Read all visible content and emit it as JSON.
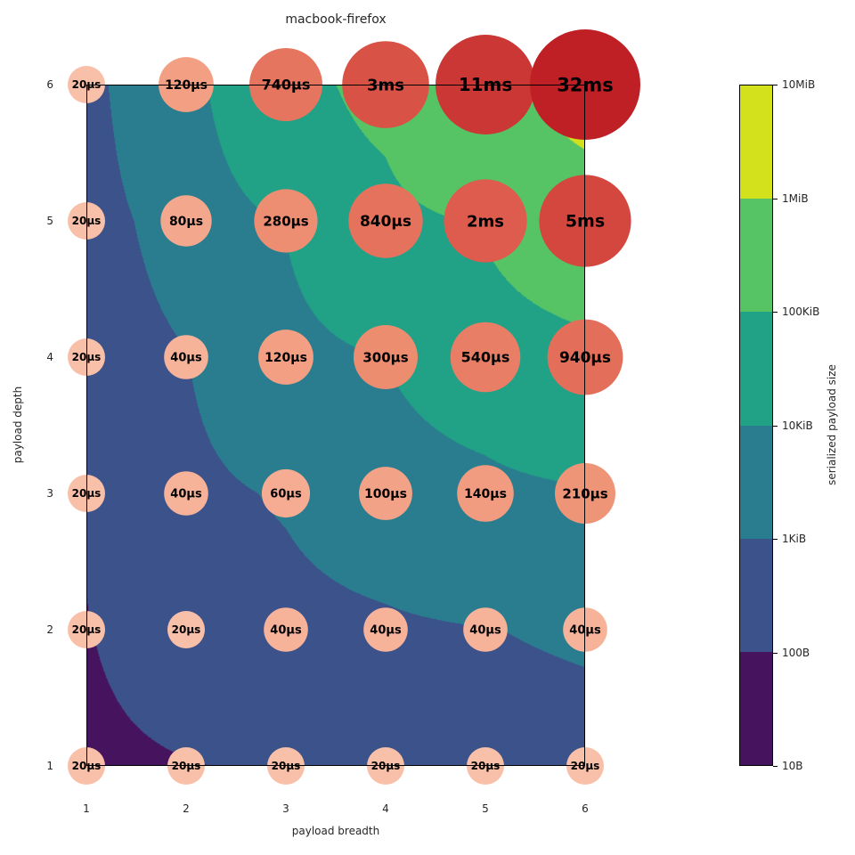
{
  "title": "macbook-firefox",
  "axes": {
    "xlabel": "payload breadth",
    "ylabel": "payload depth",
    "x_ticks": [
      "1",
      "2",
      "3",
      "4",
      "5",
      "6"
    ],
    "y_ticks": [
      "6",
      "5",
      "4",
      "3",
      "2",
      "1"
    ]
  },
  "colorbar": {
    "label": "serialized payload size",
    "ticks_top_to_bottom": [
      "10MiB",
      "1MiB",
      "100KiB",
      "10KiB",
      "1KiB",
      "100B",
      "10B"
    ],
    "band_colors_bottom_to_top": [
      "#46135f",
      "#3b528b",
      "#2a7d8e",
      "#21a186",
      "#56c465",
      "#d2e11b"
    ]
  },
  "chart_data": {
    "type": "scatter",
    "subtype": "bubble-grid-over-filled-contour",
    "title": "macbook-firefox",
    "xlabel": "payload breadth",
    "ylabel": "payload depth",
    "x_values": [
      1,
      2,
      3,
      4,
      5,
      6
    ],
    "y_values_top_to_bottom": [
      6,
      5,
      4,
      3,
      2,
      1
    ],
    "xlim": [
      1,
      6
    ],
    "ylim": [
      1,
      6
    ],
    "grid": false,
    "legend_position": "right-colorbar",
    "bubble_time_labels_rows_d6_to_d1": [
      [
        "20µs",
        "120µs",
        "740µs",
        "3ms",
        "11ms",
        "32ms"
      ],
      [
        "20µs",
        "80µs",
        "280µs",
        "840µs",
        "2ms",
        "5ms"
      ],
      [
        "20µs",
        "40µs",
        "120µs",
        "300µs",
        "540µs",
        "940µs"
      ],
      [
        "20µs",
        "40µs",
        "60µs",
        "100µs",
        "140µs",
        "210µs"
      ],
      [
        "20µs",
        "20µs",
        "40µs",
        "40µs",
        "40µs",
        "40µs"
      ],
      [
        "20µs",
        "20µs",
        "20µs",
        "20µs",
        "20µs",
        "20µs"
      ]
    ],
    "bubble_time_us_rows_d6_to_d1": [
      [
        20,
        120,
        740,
        3000,
        11000,
        32000
      ],
      [
        20,
        80,
        280,
        840,
        2000,
        5000
      ],
      [
        20,
        40,
        120,
        300,
        540,
        940
      ],
      [
        20,
        40,
        60,
        100,
        140,
        210
      ],
      [
        20,
        20,
        40,
        40,
        40,
        40
      ],
      [
        20,
        20,
        20,
        20,
        20,
        20
      ]
    ],
    "contour_variable": "serialized payload size",
    "contour_level_labels": [
      "10B",
      "100B",
      "1KiB",
      "10KiB",
      "100KiB",
      "1MiB",
      "10MiB"
    ],
    "contour_levels_bytes": [
      10,
      100,
      1024,
      10240,
      102400,
      1048576,
      10485760
    ],
    "contour_size_bytes_rows_d6_to_d1": [
      [
        217,
        3937,
        33883,
        169291,
        605461,
        1735597
      ],
      [
        186,
        1953,
        11284,
        42315,
        121086,
        289261
      ],
      [
        155,
        961,
        3751,
        10571,
        24211,
        48205
      ],
      [
        124,
        465,
        1240,
        2635,
        4836,
        8029
      ],
      [
        93,
        217,
        403,
        651,
        961,
        1333
      ],
      [
        62,
        93,
        124,
        155,
        186,
        217
      ]
    ],
    "bubble_color_stops_light_to_dark": [
      "#f9c0a9",
      "#ef9375",
      "#da5447",
      "#bf2026"
    ],
    "bubble_label_color": "#000000"
  }
}
